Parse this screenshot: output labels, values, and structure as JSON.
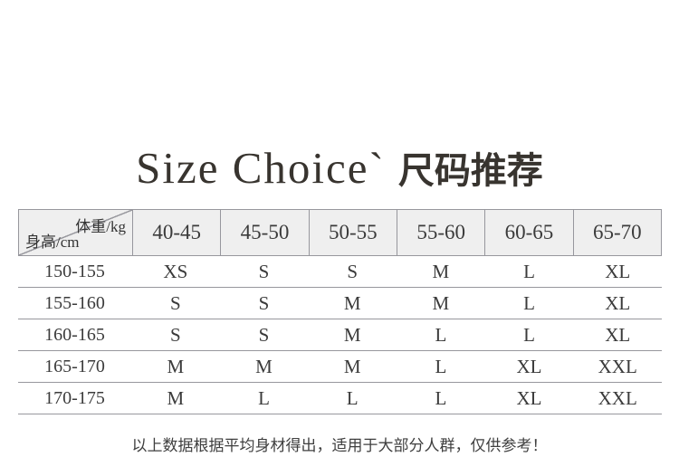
{
  "title": {
    "en": "Size Choice`",
    "zh": "尺码推荐"
  },
  "table": {
    "corner": {
      "weight_label": "体重/kg",
      "height_label": "身高/cm"
    },
    "weight_columns": [
      "40-45",
      "45-50",
      "50-55",
      "55-60",
      "60-65",
      "65-70"
    ],
    "rows": [
      {
        "height": "150-155",
        "sizes": [
          "XS",
          "S",
          "S",
          "M",
          "L",
          "XL"
        ]
      },
      {
        "height": "155-160",
        "sizes": [
          "S",
          "S",
          "M",
          "M",
          "L",
          "XL"
        ]
      },
      {
        "height": "160-165",
        "sizes": [
          "S",
          "S",
          "M",
          "L",
          "L",
          "XL"
        ]
      },
      {
        "height": "165-170",
        "sizes": [
          "M",
          "M",
          "M",
          "L",
          "XL",
          "XXL"
        ]
      },
      {
        "height": "170-175",
        "sizes": [
          "M",
          "L",
          "L",
          "L",
          "XL",
          "XXL"
        ]
      }
    ]
  },
  "footer": {
    "note": "以上数据根据平均身材得出，适用于大部分人群，仅供参考！"
  },
  "colors": {
    "border": "#97979d",
    "header_bg": "#efefef",
    "text": "#3b3b3b"
  },
  "chart_data": {
    "type": "table",
    "title": "Size Choice` 尺码推荐",
    "columns": [
      "身高/cm \\ 体重/kg",
      "40-45",
      "45-50",
      "50-55",
      "55-60",
      "60-65",
      "65-70"
    ],
    "rows": [
      [
        "150-155",
        "XS",
        "S",
        "S",
        "M",
        "L",
        "XL"
      ],
      [
        "155-160",
        "S",
        "S",
        "M",
        "M",
        "L",
        "XL"
      ],
      [
        "160-165",
        "S",
        "S",
        "M",
        "L",
        "L",
        "XL"
      ],
      [
        "165-170",
        "M",
        "M",
        "M",
        "L",
        "XL",
        "XXL"
      ],
      [
        "170-175",
        "M",
        "L",
        "L",
        "L",
        "XL",
        "XXL"
      ]
    ],
    "note": "以上数据根据平均身材得出，适用于大部分人群，仅供参考！"
  }
}
